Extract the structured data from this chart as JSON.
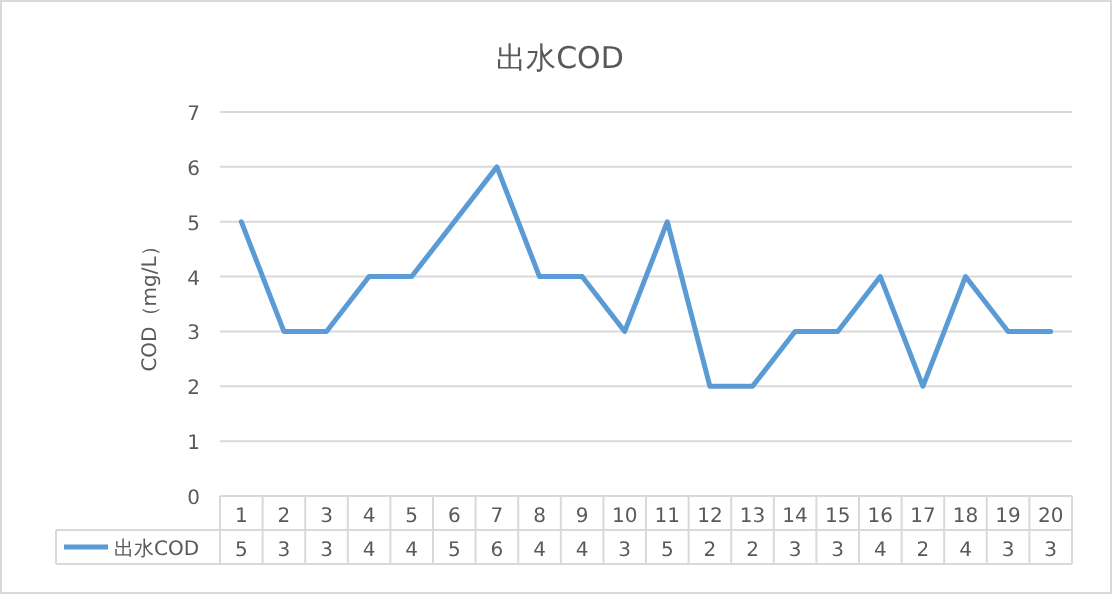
{
  "chart_data": {
    "type": "line",
    "title": "出水COD",
    "ylabel": "COD（mg/L）",
    "categories": [
      "1",
      "2",
      "3",
      "4",
      "5",
      "6",
      "7",
      "8",
      "9",
      "10",
      "11",
      "12",
      "13",
      "14",
      "15",
      "16",
      "17",
      "18",
      "19",
      "20"
    ],
    "series": [
      {
        "name": "出水COD",
        "color": "#5b9bd5",
        "values": [
          5,
          3,
          3,
          4,
          4,
          5,
          6,
          4,
          4,
          3,
          5,
          2,
          2,
          3,
          3,
          4,
          2,
          4,
          3,
          3
        ]
      }
    ],
    "ylim": [
      0,
      7
    ],
    "yticks": [
      0,
      1,
      2,
      3,
      4,
      5,
      6,
      7
    ],
    "grid": "y",
    "legend": "bottom",
    "data_labels": true,
    "marker": "none",
    "line_style": "solid"
  }
}
